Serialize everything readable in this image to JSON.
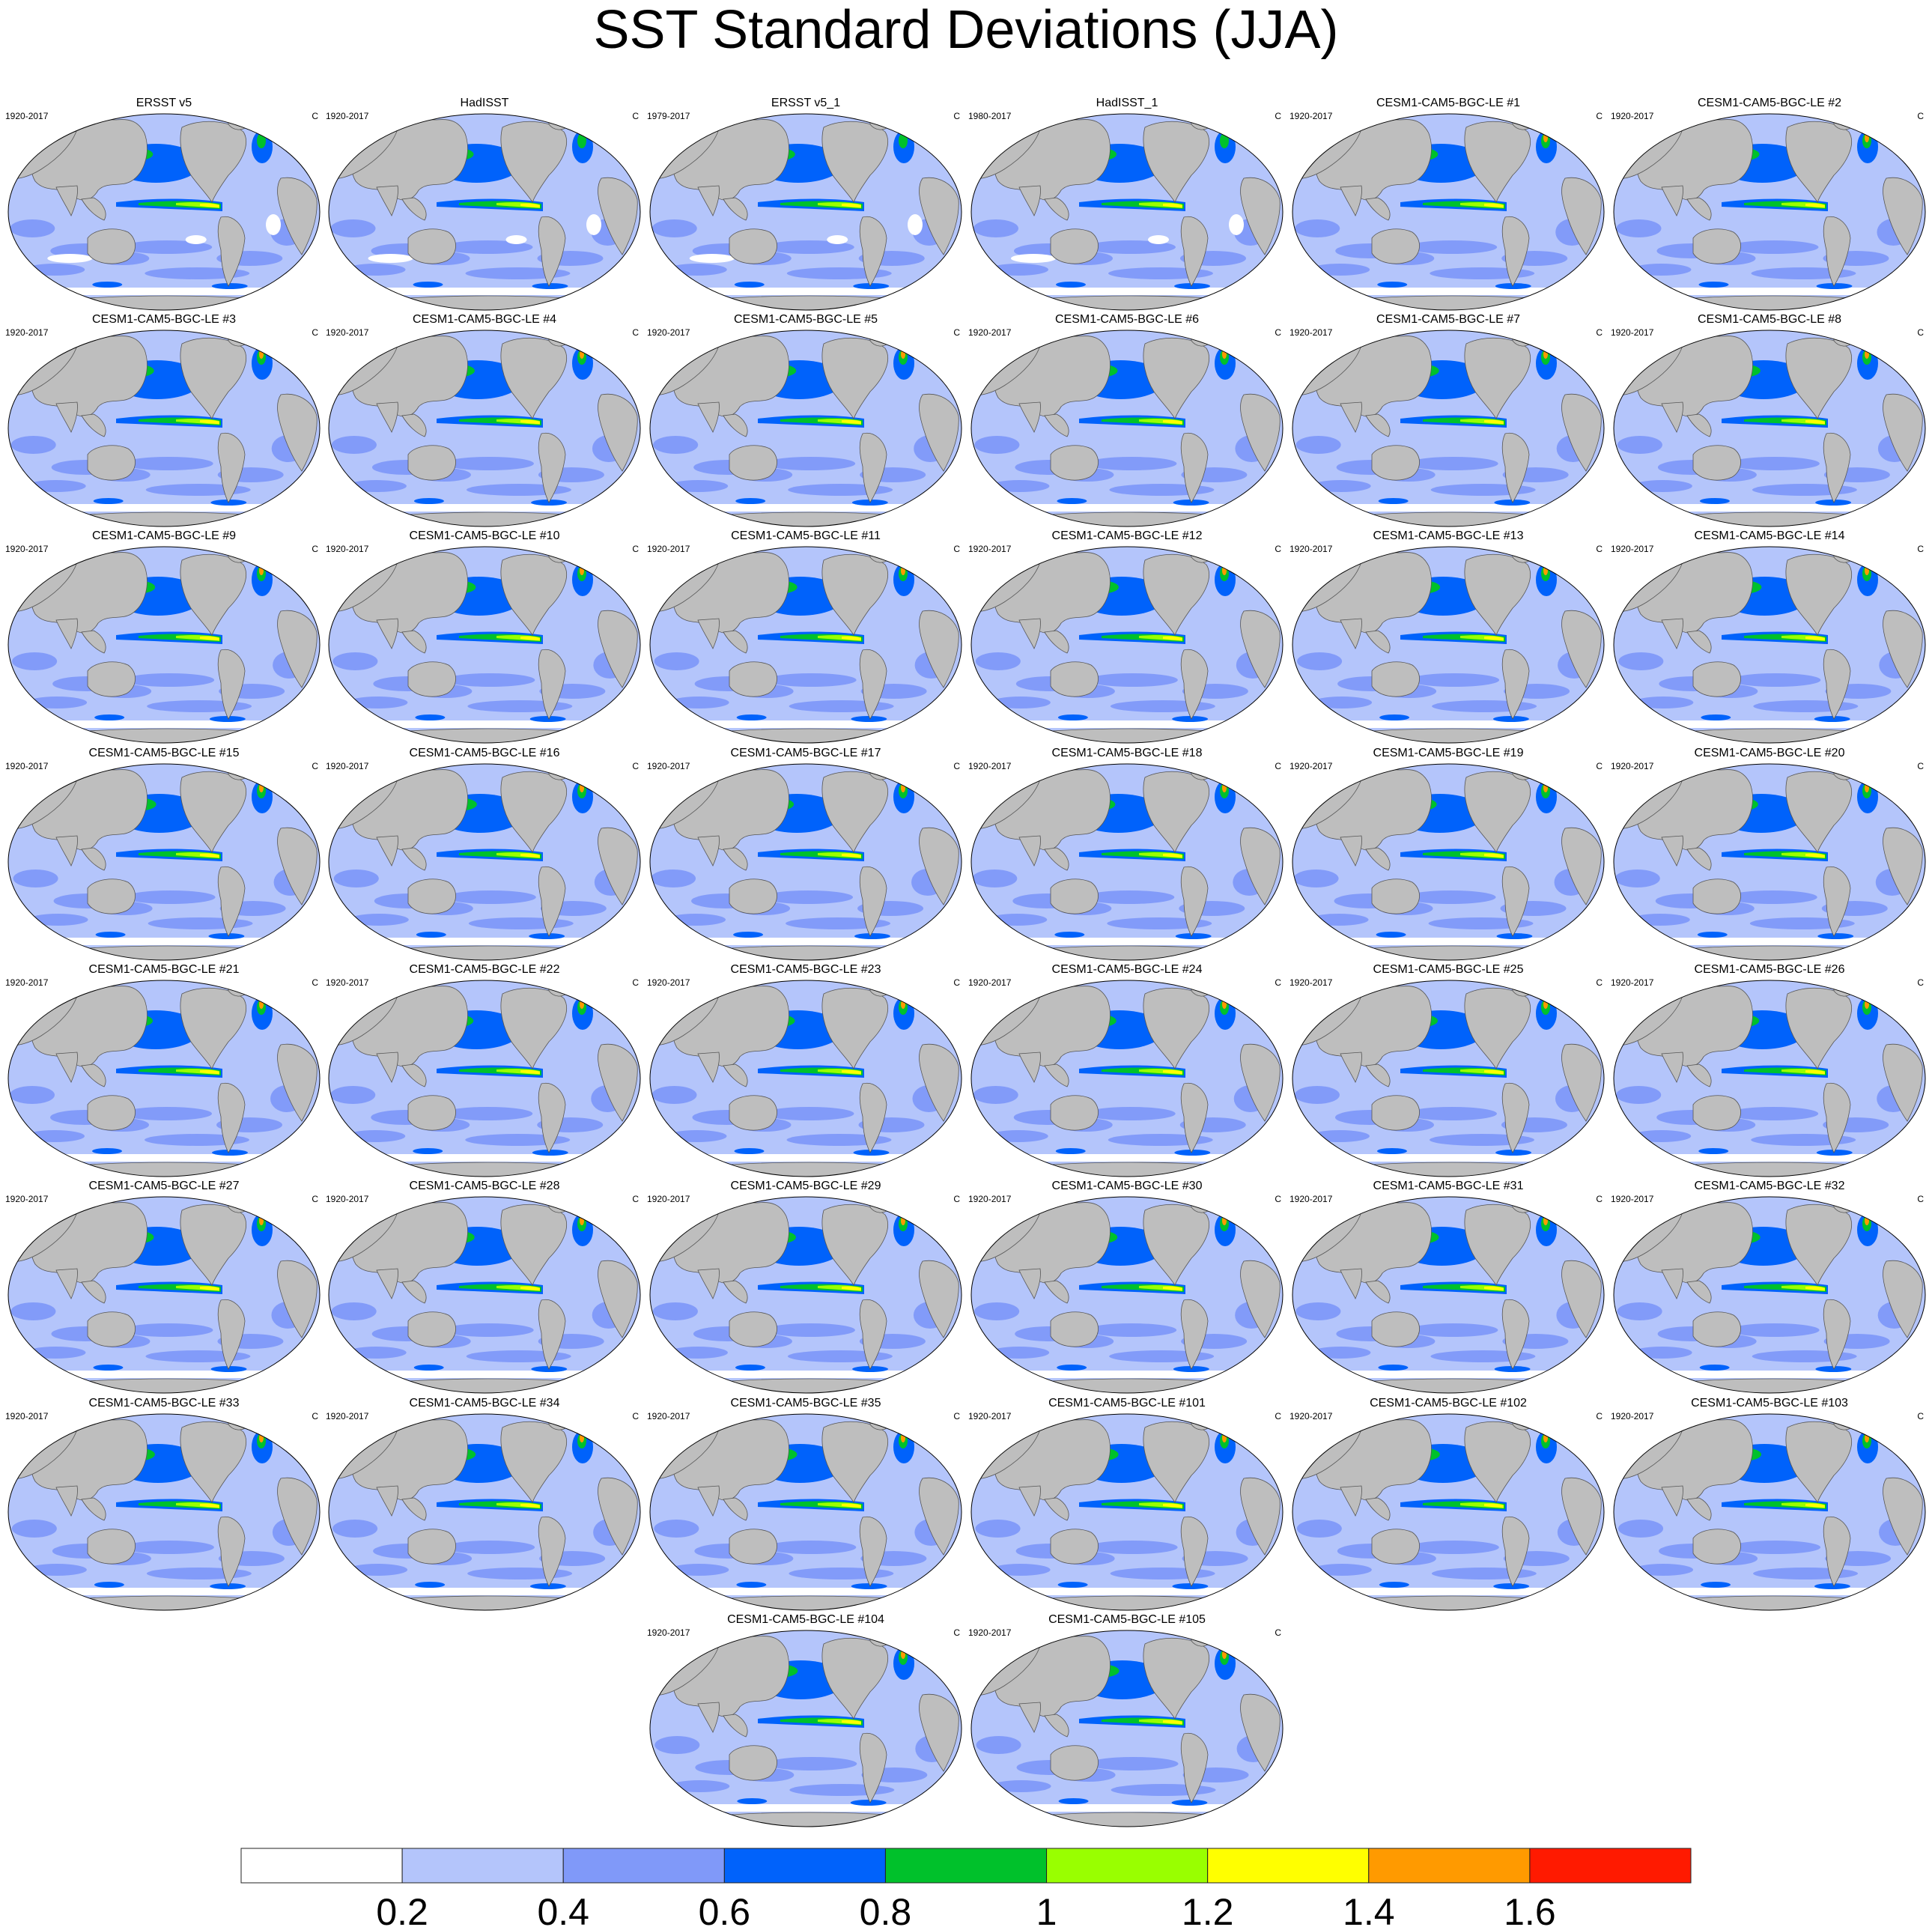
{
  "title": "SST Standard Deviations (JJA)",
  "units": "C",
  "panels": [
    {
      "title": "ERSST v5",
      "period": "1920-2017",
      "kind": "obs"
    },
    {
      "title": "HadISST",
      "period": "1920-2017",
      "kind": "obs"
    },
    {
      "title": "ERSST v5_1",
      "period": "1979-2017",
      "kind": "obs"
    },
    {
      "title": "HadISST_1",
      "period": "1980-2017",
      "kind": "obs"
    },
    {
      "title": "CESM1-CAM5-BGC-LE #1",
      "period": "1920-2017",
      "kind": "model"
    },
    {
      "title": "CESM1-CAM5-BGC-LE #2",
      "period": "1920-2017",
      "kind": "model"
    },
    {
      "title": "CESM1-CAM5-BGC-LE #3",
      "period": "1920-2017",
      "kind": "model"
    },
    {
      "title": "CESM1-CAM5-BGC-LE #4",
      "period": "1920-2017",
      "kind": "model"
    },
    {
      "title": "CESM1-CAM5-BGC-LE #5",
      "period": "1920-2017",
      "kind": "model"
    },
    {
      "title": "CESM1-CAM5-BGC-LE #6",
      "period": "1920-2017",
      "kind": "model"
    },
    {
      "title": "CESM1-CAM5-BGC-LE #7",
      "period": "1920-2017",
      "kind": "model"
    },
    {
      "title": "CESM1-CAM5-BGC-LE #8",
      "period": "1920-2017",
      "kind": "model"
    },
    {
      "title": "CESM1-CAM5-BGC-LE #9",
      "period": "1920-2017",
      "kind": "model"
    },
    {
      "title": "CESM1-CAM5-BGC-LE #10",
      "period": "1920-2017",
      "kind": "model"
    },
    {
      "title": "CESM1-CAM5-BGC-LE #11",
      "period": "1920-2017",
      "kind": "model"
    },
    {
      "title": "CESM1-CAM5-BGC-LE #12",
      "period": "1920-2017",
      "kind": "model"
    },
    {
      "title": "CESM1-CAM5-BGC-LE #13",
      "period": "1920-2017",
      "kind": "model"
    },
    {
      "title": "CESM1-CAM5-BGC-LE #14",
      "period": "1920-2017",
      "kind": "model"
    },
    {
      "title": "CESM1-CAM5-BGC-LE #15",
      "period": "1920-2017",
      "kind": "model"
    },
    {
      "title": "CESM1-CAM5-BGC-LE #16",
      "period": "1920-2017",
      "kind": "model"
    },
    {
      "title": "CESM1-CAM5-BGC-LE #17",
      "period": "1920-2017",
      "kind": "model"
    },
    {
      "title": "CESM1-CAM5-BGC-LE #18",
      "period": "1920-2017",
      "kind": "model"
    },
    {
      "title": "CESM1-CAM5-BGC-LE #19",
      "period": "1920-2017",
      "kind": "model"
    },
    {
      "title": "CESM1-CAM5-BGC-LE #20",
      "period": "1920-2017",
      "kind": "model"
    },
    {
      "title": "CESM1-CAM5-BGC-LE #21",
      "period": "1920-2017",
      "kind": "model"
    },
    {
      "title": "CESM1-CAM5-BGC-LE #22",
      "period": "1920-2017",
      "kind": "model"
    },
    {
      "title": "CESM1-CAM5-BGC-LE #23",
      "period": "1920-2017",
      "kind": "model"
    },
    {
      "title": "CESM1-CAM5-BGC-LE #24",
      "period": "1920-2017",
      "kind": "model"
    },
    {
      "title": "CESM1-CAM5-BGC-LE #25",
      "period": "1920-2017",
      "kind": "model"
    },
    {
      "title": "CESM1-CAM5-BGC-LE #26",
      "period": "1920-2017",
      "kind": "model"
    },
    {
      "title": "CESM1-CAM5-BGC-LE #27",
      "period": "1920-2017",
      "kind": "model"
    },
    {
      "title": "CESM1-CAM5-BGC-LE #28",
      "period": "1920-2017",
      "kind": "model"
    },
    {
      "title": "CESM1-CAM5-BGC-LE #29",
      "period": "1920-2017",
      "kind": "model"
    },
    {
      "title": "CESM1-CAM5-BGC-LE #30",
      "period": "1920-2017",
      "kind": "model"
    },
    {
      "title": "CESM1-CAM5-BGC-LE #31",
      "period": "1920-2017",
      "kind": "model"
    },
    {
      "title": "CESM1-CAM5-BGC-LE #32",
      "period": "1920-2017",
      "kind": "model"
    },
    {
      "title": "CESM1-CAM5-BGC-LE #33",
      "period": "1920-2017",
      "kind": "model"
    },
    {
      "title": "CESM1-CAM5-BGC-LE #34",
      "period": "1920-2017",
      "kind": "model"
    },
    {
      "title": "CESM1-CAM5-BGC-LE #35",
      "period": "1920-2017",
      "kind": "model"
    },
    {
      "title": "CESM1-CAM5-BGC-LE #101",
      "period": "1920-2017",
      "kind": "model"
    },
    {
      "title": "CESM1-CAM5-BGC-LE #102",
      "period": "1920-2017",
      "kind": "model"
    },
    {
      "title": "CESM1-CAM5-BGC-LE #103",
      "period": "1920-2017",
      "kind": "model"
    },
    {
      "title": "CESM1-CAM5-BGC-LE #104",
      "period": "1920-2017",
      "kind": "model"
    },
    {
      "title": "CESM1-CAM5-BGC-LE #105",
      "period": "1920-2017",
      "kind": "model"
    }
  ],
  "colorbar": {
    "levels": [
      "0.2",
      "0.4",
      "0.6",
      "0.8",
      "1",
      "1.2",
      "1.4",
      "1.6"
    ],
    "colors": [
      "#ffffff",
      "#b4c5fb",
      "#8099f9",
      "#0062fb",
      "#00c12b",
      "#99ff00",
      "#ffff00",
      "#ff9a00",
      "#ff1a00"
    ]
  },
  "map_colors": {
    "land": "#bebebe",
    "ocean_base": "#b4c5fb"
  }
}
